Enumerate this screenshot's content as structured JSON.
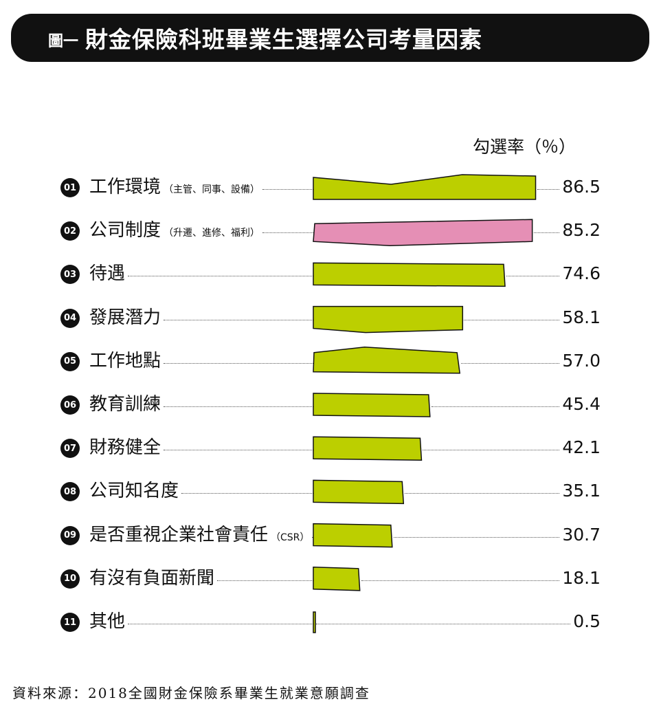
{
  "title": {
    "prefix": "圖一",
    "text": "財金保險科班畢業生選擇公司考量因素"
  },
  "unit_label": "勾選率（％）",
  "source": "資料來源：2018全國財金保險系畢業生就業意願調查",
  "colors": {
    "primary": "#bccf00",
    "highlight": "#e58fb5",
    "stroke": "#111111",
    "title_bg": "#111111"
  },
  "chart_data": {
    "type": "bar",
    "orientation": "horizontal",
    "unit": "%",
    "xlim": [
      0,
      100
    ],
    "highlight_index": 1,
    "items": [
      {
        "rank": "01",
        "label": "工作環境",
        "sub": "（主管、同事、設備）",
        "value": 86.5,
        "value_text": "86.5"
      },
      {
        "rank": "02",
        "label": "公司制度",
        "sub": "（升遷、進修、福利）",
        "value": 85.2,
        "value_text": "85.2"
      },
      {
        "rank": "03",
        "label": "待遇",
        "sub": "",
        "value": 74.6,
        "value_text": "74.6"
      },
      {
        "rank": "04",
        "label": "發展潛力",
        "sub": "",
        "value": 58.1,
        "value_text": "58.1"
      },
      {
        "rank": "05",
        "label": "工作地點",
        "sub": "",
        "value": 57.0,
        "value_text": "57.0"
      },
      {
        "rank": "06",
        "label": "教育訓練",
        "sub": "",
        "value": 45.4,
        "value_text": "45.4"
      },
      {
        "rank": "07",
        "label": "財務健全",
        "sub": "",
        "value": 42.1,
        "value_text": "42.1"
      },
      {
        "rank": "08",
        "label": "公司知名度",
        "sub": "",
        "value": 35.1,
        "value_text": "35.1"
      },
      {
        "rank": "09",
        "label": "是否重視企業社會責任",
        "sub": "（CSR）",
        "value": 30.7,
        "value_text": "30.7"
      },
      {
        "rank": "10",
        "label": "有沒有負面新聞",
        "sub": "",
        "value": 18.1,
        "value_text": "18.1"
      },
      {
        "rank": "11",
        "label": "其他",
        "sub": "",
        "value": 0.5,
        "value_text": "0.5"
      }
    ]
  }
}
